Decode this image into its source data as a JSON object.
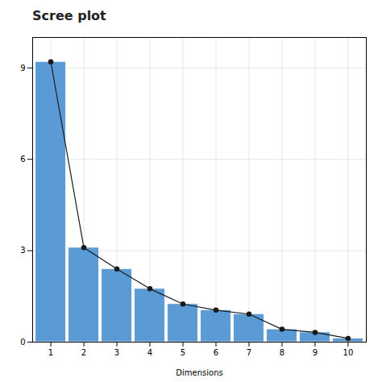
{
  "chart_data": {
    "type": "bar",
    "title": "Scree plot",
    "xlabel": "Dimensions",
    "x": [
      1,
      2,
      3,
      4,
      5,
      6,
      7,
      8,
      9,
      10
    ],
    "series": [
      {
        "type": "bar",
        "color": "#5b9bd5",
        "values": [
          9.2,
          3.1,
          2.4,
          1.75,
          1.25,
          1.05,
          0.92,
          0.42,
          0.32,
          0.12
        ]
      },
      {
        "type": "line",
        "color": "#1a1a1a",
        "marker": "o",
        "line_style": "solid",
        "values": [
          9.2,
          3.1,
          2.4,
          1.75,
          1.25,
          1.05,
          0.92,
          0.42,
          0.32,
          0.12
        ]
      }
    ],
    "xlim": [
      0.45,
      10.55
    ],
    "xticks": [
      1,
      2,
      3,
      4,
      5,
      6,
      7,
      8,
      9,
      10
    ],
    "ylim": [
      0,
      10
    ],
    "yticks": [
      0,
      3,
      6,
      9
    ],
    "grid": true
  }
}
